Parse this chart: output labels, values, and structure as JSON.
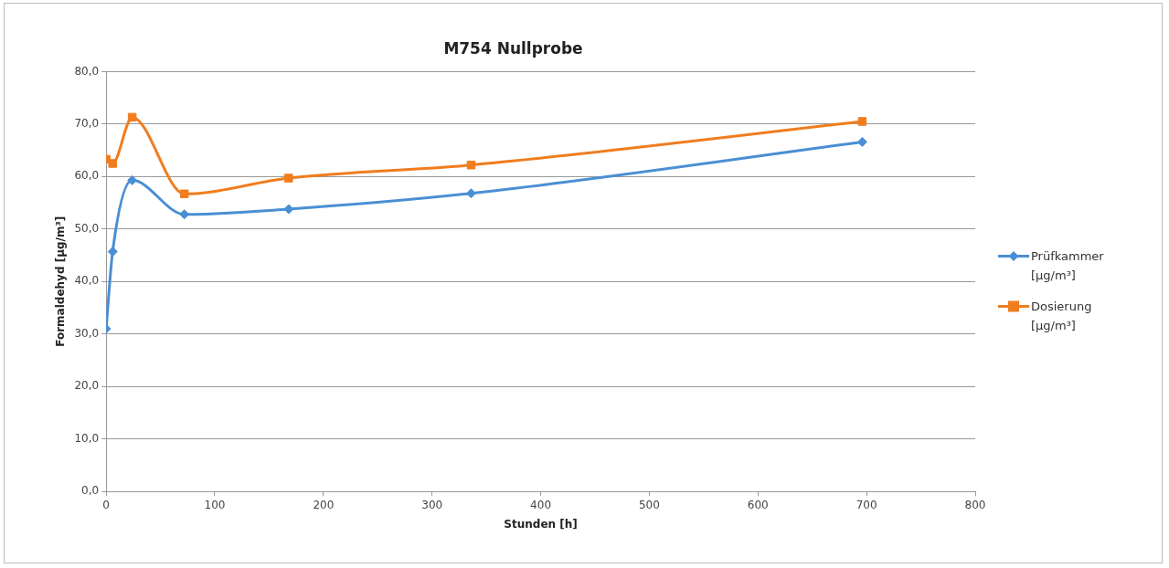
{
  "chart_data": {
    "type": "line",
    "title": "M754 Nullprobe",
    "xlabel": "Stunden [h]",
    "ylabel": "Formaldehyd [µg/m³]",
    "series": [
      {
        "name": "Prüfkammer [µg/m³]",
        "color": "#4a8fd4",
        "marker": "diamond",
        "x": [
          0,
          6,
          24,
          72,
          168,
          336,
          696
        ],
        "values": [
          31.0,
          45.7,
          59.3,
          52.8,
          53.8,
          56.8,
          66.6
        ]
      },
      {
        "name": "Dosierung [µg/m³]",
        "color": "#f07d1e",
        "marker": "square",
        "x": [
          0,
          6,
          24,
          72,
          168,
          336,
          696
        ],
        "values": [
          63.3,
          62.5,
          71.3,
          56.7,
          59.7,
          62.2,
          70.5
        ]
      }
    ],
    "xlim": [
      0,
      800
    ],
    "xticks": [
      0,
      100,
      200,
      300,
      400,
      500,
      600,
      700,
      800
    ],
    "ylim": [
      0,
      80
    ],
    "yticks": [
      {
        "value": 0,
        "label": "0,0"
      },
      {
        "value": 10,
        "label": "10,0"
      },
      {
        "value": 20,
        "label": "20,0"
      },
      {
        "value": 30,
        "label": "30,0"
      },
      {
        "value": 40,
        "label": "40,0"
      },
      {
        "value": 50,
        "label": "50,0"
      },
      {
        "value": 60,
        "label": "60,0"
      },
      {
        "value": 70,
        "label": "70,0"
      },
      {
        "value": 80,
        "label": "80,0"
      }
    ],
    "grid": "y",
    "legend": "right"
  }
}
